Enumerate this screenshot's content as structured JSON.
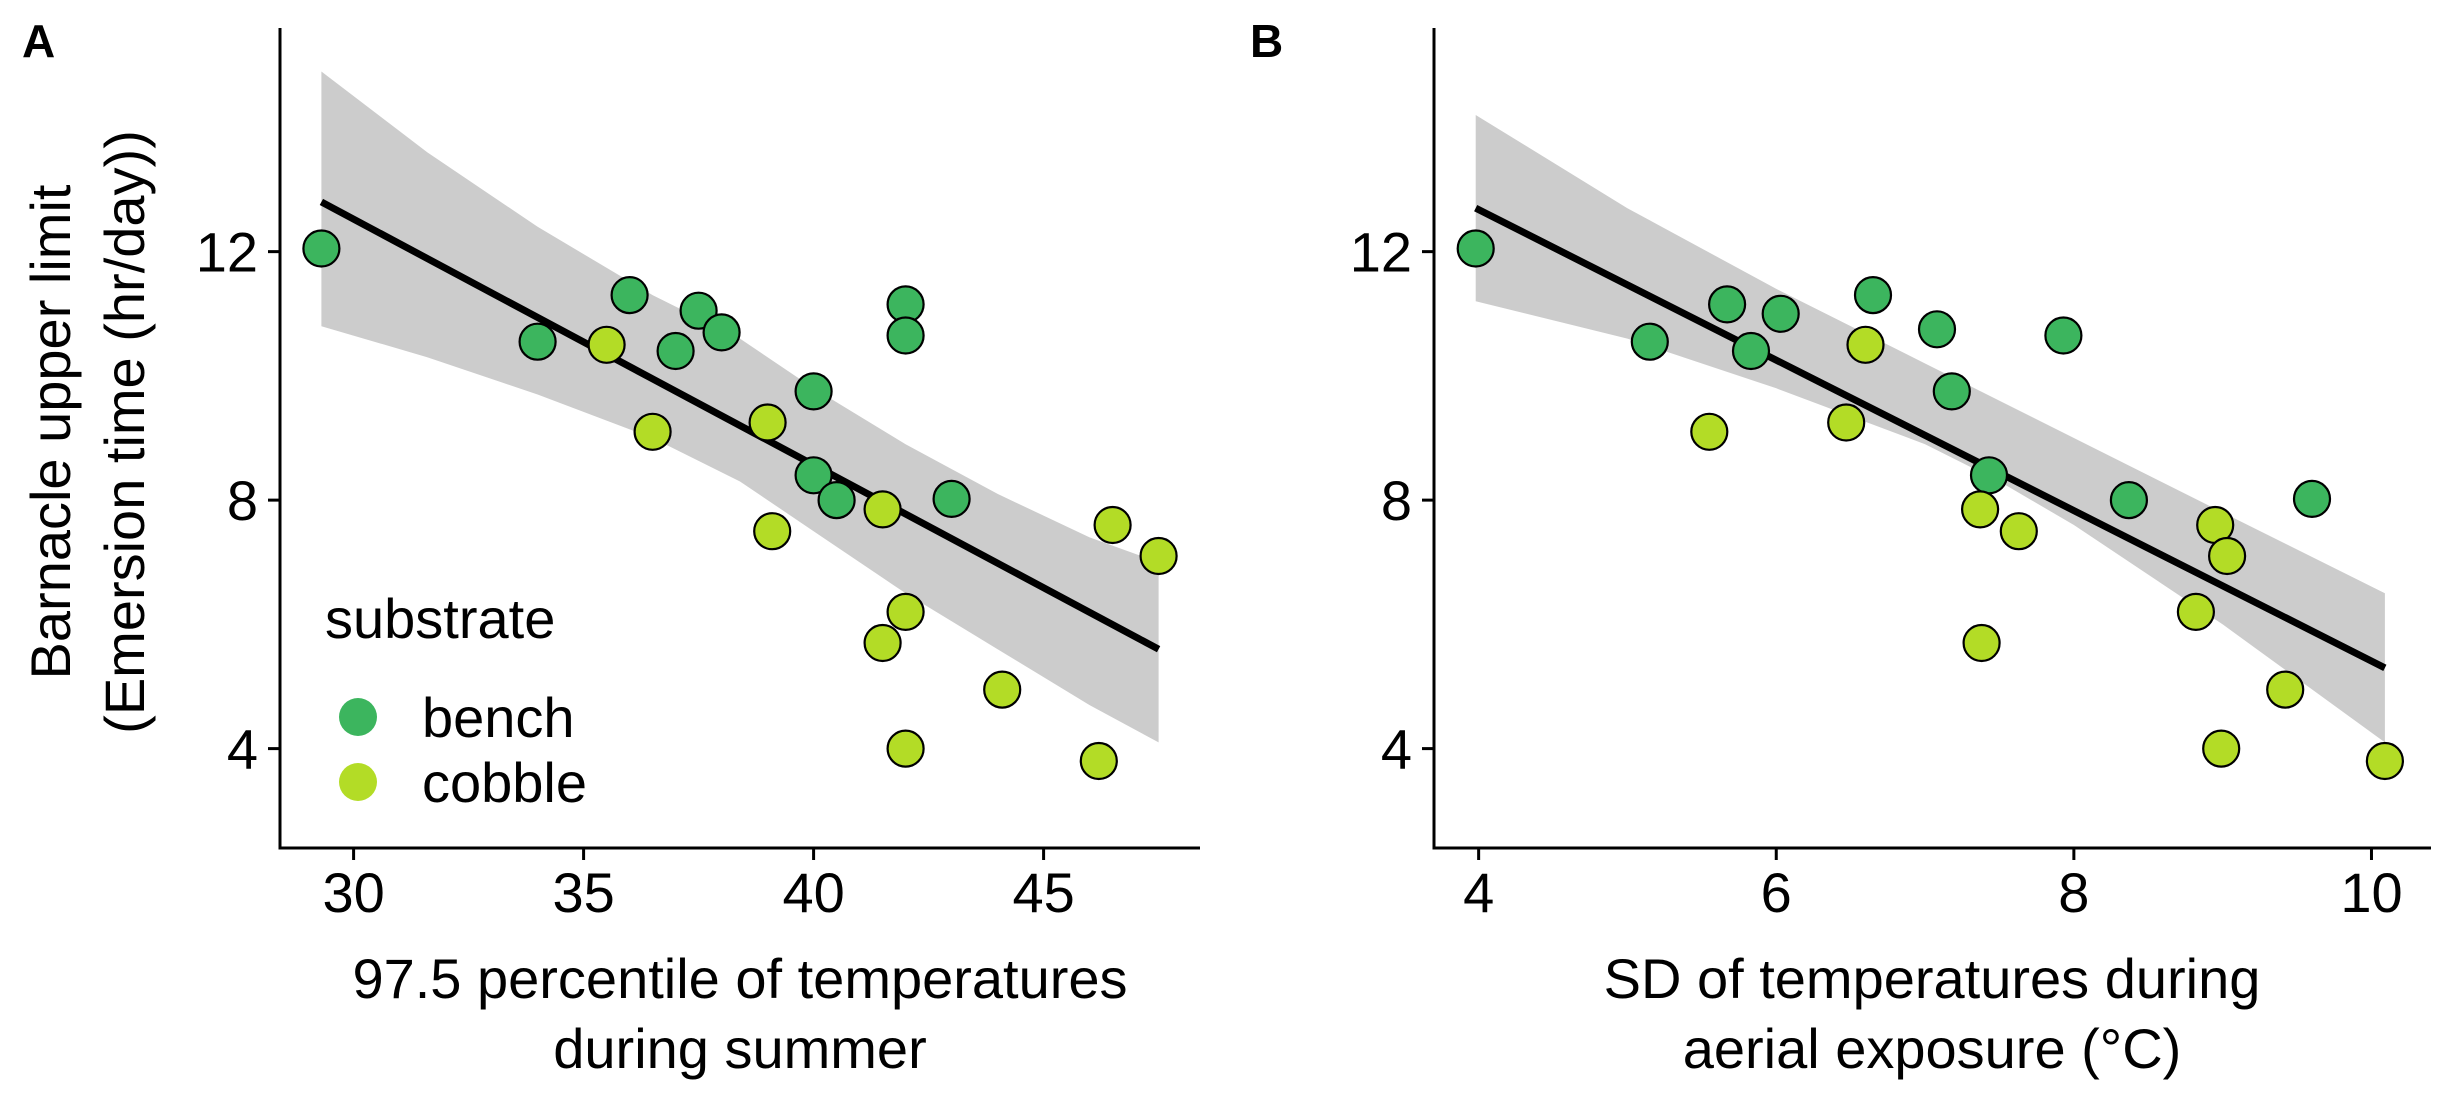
{
  "colors": {
    "bench": "#3cb55e",
    "cobble": "#b3dc26",
    "band": "#cccccc",
    "line": "#000000"
  },
  "chart_data": [
    {
      "type": "scatter",
      "panel_label": "A",
      "xlabel": [
        "97.5 percentile of temperatures",
        "during summer"
      ],
      "ylabel": [
        "Barnacle upper limit",
        "(Emersion time (hr/day))"
      ],
      "xlim": [
        28.4,
        48.4
      ],
      "ylim": [
        2.4,
        15.6
      ],
      "xticks": [
        30,
        35,
        40,
        45
      ],
      "yticks": [
        4,
        8,
        12
      ],
      "grid": false,
      "legend": {
        "title": "substrate",
        "entries": [
          "bench",
          "cobble"
        ],
        "position": "bottom-left"
      },
      "series": [
        {
          "name": "bench",
          "points": [
            [
              29.3,
              12.05
            ],
            [
              34.0,
              10.55
            ],
            [
              36.0,
              11.3
            ],
            [
              37.0,
              10.4
            ],
            [
              37.5,
              11.05
            ],
            [
              38.0,
              10.7
            ],
            [
              40.0,
              9.75
            ],
            [
              40.0,
              8.4
            ],
            [
              40.5,
              8.0
            ],
            [
              42.0,
              11.15
            ],
            [
              42.0,
              10.65
            ],
            [
              43.0,
              8.02
            ]
          ]
        },
        {
          "name": "cobble",
          "points": [
            [
              35.5,
              10.5
            ],
            [
              36.5,
              9.1
            ],
            [
              39.0,
              9.25
            ],
            [
              39.1,
              7.5
            ],
            [
              41.5,
              7.85
            ],
            [
              41.5,
              5.7
            ],
            [
              42.0,
              6.2
            ],
            [
              42.0,
              4.0
            ],
            [
              44.1,
              4.95
            ],
            [
              46.2,
              3.8
            ],
            [
              46.5,
              7.6
            ],
            [
              47.5,
              7.1
            ]
          ]
        }
      ],
      "fit": {
        "x": [
          29.3,
          47.5
        ],
        "y": [
          12.8,
          5.6
        ]
      },
      "ci": {
        "x": [
          29.3,
          31.6,
          34.0,
          36.5,
          38.4,
          40.0,
          42.0,
          44.0,
          46.0,
          47.5
        ],
        "upper": [
          14.9,
          13.6,
          12.4,
          11.3,
          10.6,
          9.8,
          8.9,
          8.1,
          7.4,
          7.0
        ],
        "lower": [
          10.8,
          10.3,
          9.7,
          9.0,
          8.3,
          7.5,
          6.5,
          5.6,
          4.7,
          4.1
        ]
      }
    },
    {
      "type": "scatter",
      "panel_label": "B",
      "xlabel": [
        "SD of temperatures during",
        "aerial exposure (°C)"
      ],
      "ylabel": [],
      "xlim": [
        3.7,
        10.4
      ],
      "ylim": [
        2.4,
        15.6
      ],
      "xticks": [
        4,
        6,
        8,
        10
      ],
      "yticks": [
        4,
        8,
        12
      ],
      "grid": false,
      "series": [
        {
          "name": "bench",
          "points": [
            [
              3.98,
              12.05
            ],
            [
              5.15,
              10.55
            ],
            [
              5.67,
              11.15
            ],
            [
              5.83,
              10.4
            ],
            [
              6.03,
              11.0
            ],
            [
              6.65,
              11.3
            ],
            [
              7.08,
              10.75
            ],
            [
              7.18,
              9.75
            ],
            [
              7.43,
              8.4
            ],
            [
              7.93,
              10.65
            ],
            [
              8.37,
              8.0
            ],
            [
              9.6,
              8.02
            ]
          ]
        },
        {
          "name": "cobble",
          "points": [
            [
              5.55,
              9.1
            ],
            [
              6.47,
              9.25
            ],
            [
              6.6,
              10.5
            ],
            [
              7.37,
              7.85
            ],
            [
              7.38,
              5.7
            ],
            [
              7.63,
              7.5
            ],
            [
              8.82,
              6.2
            ],
            [
              8.95,
              7.6
            ],
            [
              8.99,
              4.0
            ],
            [
              9.03,
              7.1
            ],
            [
              9.42,
              4.95
            ],
            [
              10.09,
              3.8
            ]
          ]
        }
      ],
      "fit": {
        "x": [
          3.98,
          10.09
        ],
        "y": [
          12.7,
          5.3
        ]
      },
      "ci": {
        "x": [
          3.98,
          5.0,
          6.0,
          7.0,
          7.5,
          8.0,
          9.0,
          10.09
        ],
        "upper": [
          14.2,
          12.7,
          11.4,
          10.2,
          9.6,
          9.0,
          7.8,
          6.5
        ],
        "lower": [
          11.2,
          10.6,
          9.8,
          8.9,
          8.3,
          7.6,
          6.0,
          4.1
        ]
      }
    }
  ]
}
